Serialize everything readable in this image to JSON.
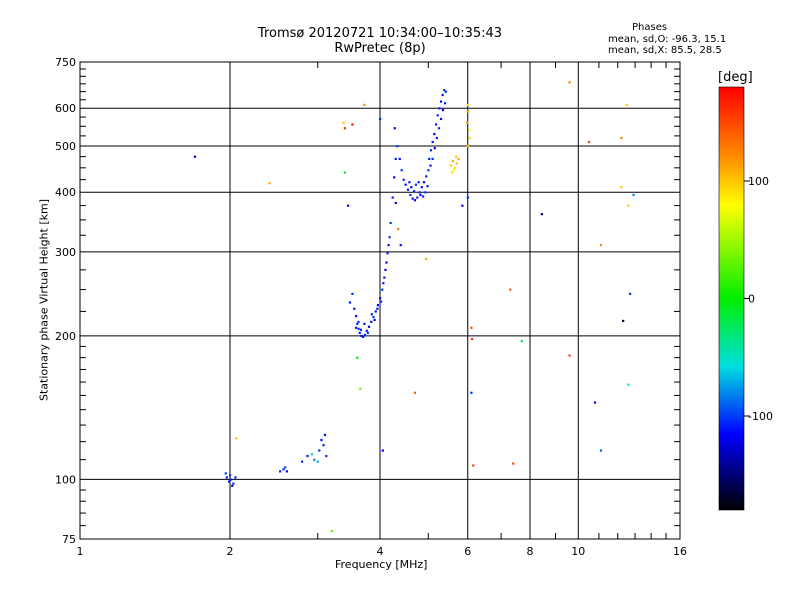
{
  "chart_data": {
    "type": "scatter",
    "title": "Tromsø 20120721 10:34:00–10:35:43",
    "subtitle": "RwPretec (8p)",
    "stats": {
      "heading": "Phases",
      "line1": "mean, sd,O: -96.3, 15.1",
      "line2": "mean, sd,X:  85.5, 28.5"
    },
    "xlabel": "Frequency [MHz]",
    "ylabel": "Stationary phase Virtual Height [km]",
    "xscale": "log",
    "yscale": "log",
    "xlim": [
      1,
      16
    ],
    "ylim": [
      75,
      750
    ],
    "grid": true,
    "xticks": [
      1,
      2,
      4,
      6,
      8,
      10,
      16
    ],
    "xminor": [
      3,
      5,
      7,
      9,
      11,
      12,
      13,
      14,
      15
    ],
    "yticks": [
      75,
      100,
      200,
      300,
      400,
      500,
      600,
      750
    ],
    "ygrid": [
      100,
      200,
      300,
      400,
      500,
      600
    ],
    "yminor": [
      80,
      85,
      90,
      95,
      110,
      120,
      130,
      140,
      150,
      160,
      170,
      180,
      190,
      225,
      250,
      275,
      325,
      350,
      375,
      425,
      450,
      475,
      525,
      550,
      575,
      625,
      650,
      675,
      700,
      725
    ],
    "colorbar": {
      "label": "[deg]",
      "range": [
        -180,
        180
      ],
      "ticks": [
        100,
        0,
        -100
      ]
    },
    "points": [
      {
        "x": 1.97,
        "y": 101,
        "p": -105
      },
      {
        "x": 1.99,
        "y": 99,
        "p": -105
      },
      {
        "x": 2.01,
        "y": 100,
        "p": -105
      },
      {
        "x": 2.03,
        "y": 98,
        "p": -100
      },
      {
        "x": 2.05,
        "y": 101,
        "p": -105
      },
      {
        "x": 1.96,
        "y": 103,
        "p": -95
      },
      {
        "x": 2.02,
        "y": 97,
        "p": -110
      },
      {
        "x": 2.0,
        "y": 102,
        "p": -100
      },
      {
        "x": 2.52,
        "y": 104,
        "p": -105
      },
      {
        "x": 2.56,
        "y": 105,
        "p": -100
      },
      {
        "x": 2.6,
        "y": 104,
        "p": -110
      },
      {
        "x": 2.58,
        "y": 106,
        "p": -95
      },
      {
        "x": 2.79,
        "y": 109,
        "p": -100
      },
      {
        "x": 2.86,
        "y": 112,
        "p": -105
      },
      {
        "x": 2.92,
        "y": 113,
        "p": -60
      },
      {
        "x": 2.95,
        "y": 110,
        "p": -80
      },
      {
        "x": 3.02,
        "y": 115,
        "p": -100
      },
      {
        "x": 3.08,
        "y": 118,
        "p": -105
      },
      {
        "x": 3.12,
        "y": 112,
        "p": -100
      },
      {
        "x": 3.05,
        "y": 121,
        "p": -110
      },
      {
        "x": 3.1,
        "y": 124,
        "p": -105
      },
      {
        "x": 3.0,
        "y": 109,
        "p": -70
      },
      {
        "x": 3.48,
        "y": 235,
        "p": -105
      },
      {
        "x": 3.52,
        "y": 245,
        "p": -100
      },
      {
        "x": 3.55,
        "y": 228,
        "p": -105
      },
      {
        "x": 3.58,
        "y": 220,
        "p": -110
      },
      {
        "x": 3.6,
        "y": 212,
        "p": -105
      },
      {
        "x": 3.62,
        "y": 207,
        "p": -100
      },
      {
        "x": 3.64,
        "y": 203,
        "p": -105
      },
      {
        "x": 3.67,
        "y": 200,
        "p": -110
      },
      {
        "x": 3.7,
        "y": 199,
        "p": -105
      },
      {
        "x": 3.73,
        "y": 201,
        "p": -100
      },
      {
        "x": 3.76,
        "y": 205,
        "p": -105
      },
      {
        "x": 3.8,
        "y": 209,
        "p": -110
      },
      {
        "x": 3.84,
        "y": 214,
        "p": -105
      },
      {
        "x": 3.88,
        "y": 219,
        "p": -100
      },
      {
        "x": 3.92,
        "y": 225,
        "p": -105
      },
      {
        "x": 3.96,
        "y": 232,
        "p": -110
      },
      {
        "x": 4.0,
        "y": 240,
        "p": -105
      },
      {
        "x": 4.04,
        "y": 250,
        "p": -100
      },
      {
        "x": 4.08,
        "y": 265,
        "p": -105
      },
      {
        "x": 4.12,
        "y": 285,
        "p": -110
      },
      {
        "x": 4.16,
        "y": 310,
        "p": -105
      },
      {
        "x": 4.2,
        "y": 345,
        "p": -100
      },
      {
        "x": 4.24,
        "y": 390,
        "p": -105
      },
      {
        "x": 4.27,
        "y": 430,
        "p": -110
      },
      {
        "x": 4.3,
        "y": 470,
        "p": -105
      },
      {
        "x": 4.33,
        "y": 500,
        "p": -100
      },
      {
        "x": 3.58,
        "y": 208,
        "p": -105
      },
      {
        "x": 3.62,
        "y": 214,
        "p": -100
      },
      {
        "x": 3.66,
        "y": 206,
        "p": -110
      },
      {
        "x": 3.72,
        "y": 212,
        "p": -105
      },
      {
        "x": 3.78,
        "y": 203,
        "p": -100
      },
      {
        "x": 3.85,
        "y": 222,
        "p": -105
      },
      {
        "x": 3.9,
        "y": 216,
        "p": -110
      },
      {
        "x": 3.95,
        "y": 228,
        "p": -105
      },
      {
        "x": 4.02,
        "y": 236,
        "p": -100
      },
      {
        "x": 4.06,
        "y": 258,
        "p": -105
      },
      {
        "x": 4.1,
        "y": 275,
        "p": -110
      },
      {
        "x": 4.14,
        "y": 298,
        "p": -105
      },
      {
        "x": 4.18,
        "y": 322,
        "p": -100
      },
      {
        "x": 4.38,
        "y": 470,
        "p": -105
      },
      {
        "x": 4.42,
        "y": 445,
        "p": -100
      },
      {
        "x": 4.46,
        "y": 425,
        "p": -105
      },
      {
        "x": 4.5,
        "y": 415,
        "p": -110
      },
      {
        "x": 4.55,
        "y": 405,
        "p": -105
      },
      {
        "x": 4.6,
        "y": 395,
        "p": -100
      },
      {
        "x": 4.65,
        "y": 388,
        "p": -105
      },
      {
        "x": 4.7,
        "y": 385,
        "p": -110
      },
      {
        "x": 4.75,
        "y": 390,
        "p": -105
      },
      {
        "x": 4.8,
        "y": 400,
        "p": -100
      },
      {
        "x": 4.85,
        "y": 410,
        "p": -105
      },
      {
        "x": 4.9,
        "y": 420,
        "p": -110
      },
      {
        "x": 4.95,
        "y": 432,
        "p": -105
      },
      {
        "x": 5.0,
        "y": 445,
        "p": -100
      },
      {
        "x": 4.58,
        "y": 420,
        "p": -105
      },
      {
        "x": 4.62,
        "y": 410,
        "p": -110
      },
      {
        "x": 4.68,
        "y": 402,
        "p": -105
      },
      {
        "x": 4.72,
        "y": 415,
        "p": -100
      },
      {
        "x": 4.78,
        "y": 420,
        "p": -105
      },
      {
        "x": 4.82,
        "y": 395,
        "p": -110
      },
      {
        "x": 4.88,
        "y": 392,
        "p": -105
      },
      {
        "x": 4.93,
        "y": 400,
        "p": -100
      },
      {
        "x": 4.98,
        "y": 412,
        "p": -105
      },
      {
        "x": 5.02,
        "y": 470,
        "p": -105
      },
      {
        "x": 5.06,
        "y": 490,
        "p": -100
      },
      {
        "x": 5.1,
        "y": 510,
        "p": -105
      },
      {
        "x": 5.14,
        "y": 530,
        "p": -110
      },
      {
        "x": 5.18,
        "y": 555,
        "p": -105
      },
      {
        "x": 5.22,
        "y": 580,
        "p": -100
      },
      {
        "x": 5.26,
        "y": 600,
        "p": -105
      },
      {
        "x": 5.3,
        "y": 620,
        "p": -110
      },
      {
        "x": 5.34,
        "y": 640,
        "p": -105
      },
      {
        "x": 5.38,
        "y": 655,
        "p": -100
      },
      {
        "x": 5.05,
        "y": 455,
        "p": -105
      },
      {
        "x": 5.1,
        "y": 470,
        "p": -100
      },
      {
        "x": 5.15,
        "y": 495,
        "p": -110
      },
      {
        "x": 5.2,
        "y": 520,
        "p": -105
      },
      {
        "x": 5.25,
        "y": 545,
        "p": -100
      },
      {
        "x": 5.3,
        "y": 570,
        "p": -105
      },
      {
        "x": 5.35,
        "y": 595,
        "p": -110
      },
      {
        "x": 5.4,
        "y": 615,
        "p": -105
      },
      {
        "x": 5.42,
        "y": 650,
        "p": -100
      },
      {
        "x": 5.55,
        "y": 455,
        "p": 110
      },
      {
        "x": 5.6,
        "y": 465,
        "p": 115
      },
      {
        "x": 5.65,
        "y": 450,
        "p": 105
      },
      {
        "x": 5.7,
        "y": 460,
        "p": 110
      },
      {
        "x": 5.62,
        "y": 445,
        "p": 100
      },
      {
        "x": 5.75,
        "y": 470,
        "p": 115
      },
      {
        "x": 5.68,
        "y": 475,
        "p": 110
      },
      {
        "x": 5.58,
        "y": 440,
        "p": 105
      },
      {
        "x": 6.0,
        "y": 500,
        "p": 110
      },
      {
        "x": 6.05,
        "y": 520,
        "p": 105
      },
      {
        "x": 5.98,
        "y": 560,
        "p": 115
      },
      {
        "x": 6.02,
        "y": 590,
        "p": 110
      },
      {
        "x": 6.05,
        "y": 540,
        "p": 100
      },
      {
        "x": 6.0,
        "y": 610,
        "p": 105
      },
      {
        "x": 1.7,
        "y": 475,
        "p": -110
      },
      {
        "x": 3.38,
        "y": 560,
        "p": 110
      },
      {
        "x": 3.4,
        "y": 545,
        "p": 160
      },
      {
        "x": 3.4,
        "y": 440,
        "p": -10
      },
      {
        "x": 3.45,
        "y": 375,
        "p": -110
      },
      {
        "x": 3.52,
        "y": 555,
        "p": 170
      },
      {
        "x": 3.72,
        "y": 610,
        "p": 120
      },
      {
        "x": 4.0,
        "y": 570,
        "p": -100
      },
      {
        "x": 4.28,
        "y": 545,
        "p": -110
      },
      {
        "x": 4.3,
        "y": 380,
        "p": -120
      },
      {
        "x": 4.35,
        "y": 335,
        "p": 120
      },
      {
        "x": 4.4,
        "y": 310,
        "p": -105
      },
      {
        "x": 4.95,
        "y": 290,
        "p": 115
      },
      {
        "x": 5.85,
        "y": 375,
        "p": -110
      },
      {
        "x": 6.0,
        "y": 390,
        "p": -100
      },
      {
        "x": 3.6,
        "y": 180,
        "p": -5
      },
      {
        "x": 3.65,
        "y": 155,
        "p": 40
      },
      {
        "x": 4.05,
        "y": 115,
        "p": -110
      },
      {
        "x": 4.7,
        "y": 152,
        "p": 140
      },
      {
        "x": 6.1,
        "y": 208,
        "p": 150
      },
      {
        "x": 6.12,
        "y": 197,
        "p": 160
      },
      {
        "x": 6.1,
        "y": 152,
        "p": -100
      },
      {
        "x": 6.15,
        "y": 107,
        "p": 150
      },
      {
        "x": 7.3,
        "y": 250,
        "p": 140
      },
      {
        "x": 7.4,
        "y": 108,
        "p": 150
      },
      {
        "x": 7.7,
        "y": 195,
        "p": -20
      },
      {
        "x": 8.45,
        "y": 360,
        "p": -150
      },
      {
        "x": 9.6,
        "y": 680,
        "p": 120
      },
      {
        "x": 9.6,
        "y": 182,
        "p": 150
      },
      {
        "x": 10.5,
        "y": 510,
        "p": 150
      },
      {
        "x": 10.8,
        "y": 145,
        "p": -110
      },
      {
        "x": 11.1,
        "y": 310,
        "p": 120
      },
      {
        "x": 11.1,
        "y": 115,
        "p": -90
      },
      {
        "x": 12.2,
        "y": 520,
        "p": 120
      },
      {
        "x": 12.2,
        "y": 410,
        "p": 110
      },
      {
        "x": 12.3,
        "y": 215,
        "p": -160
      },
      {
        "x": 12.5,
        "y": 610,
        "p": 110
      },
      {
        "x": 12.6,
        "y": 375,
        "p": 110
      },
      {
        "x": 12.7,
        "y": 245,
        "p": -100
      },
      {
        "x": 12.6,
        "y": 158,
        "p": -40
      },
      {
        "x": 12.9,
        "y": 395,
        "p": -80
      },
      {
        "x": 2.06,
        "y": 122,
        "p": 110
      },
      {
        "x": 2.4,
        "y": 418,
        "p": 115
      },
      {
        "x": 3.2,
        "y": 78,
        "p": 40
      }
    ]
  }
}
